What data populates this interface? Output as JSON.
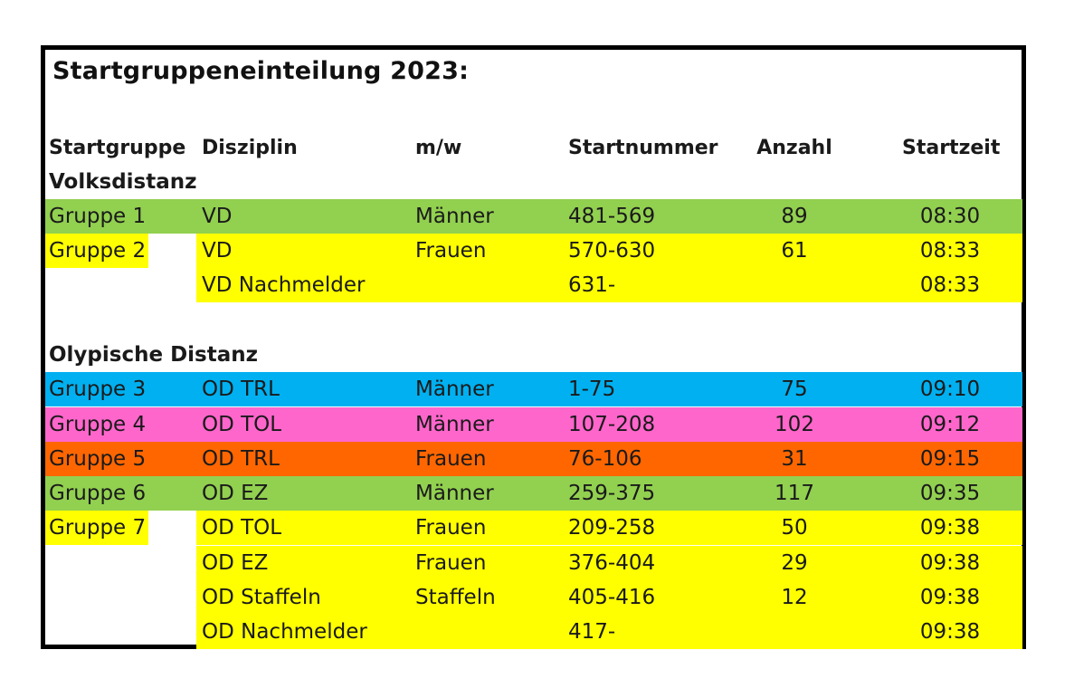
{
  "title": "Startgruppeneinteilung 2023:",
  "headers": {
    "col1": "Startgruppe",
    "col2": "Disziplin",
    "col3": "m/w",
    "col4": "Startnummer",
    "col5": "Anzahl",
    "col6": "Startzeit"
  },
  "sections": {
    "vd": "Volksdistanz",
    "od": "Olypische Distanz"
  },
  "colors": {
    "green": "#92d050",
    "yellow": "#ffff00",
    "blue": "#00b0f0",
    "pink": "#ff66cc",
    "orange": "#ff6600"
  },
  "rows": [
    {
      "group": "Gruppe 1",
      "discipline": "VD",
      "gender": "Männer",
      "numbers": "481-569",
      "count": "89",
      "time": "08:30",
      "color": "#92d050"
    },
    {
      "group": "Gruppe 2",
      "discipline": "VD",
      "gender": "Frauen",
      "numbers": "570-630",
      "count": "61",
      "time": "08:33",
      "color": "#ffff00"
    },
    {
      "group": "",
      "discipline": "VD Nachmelder",
      "gender": "",
      "numbers": "631-",
      "count": "",
      "time": "08:33",
      "color": "#ffff00"
    },
    {
      "group": "Gruppe 3",
      "discipline": "OD TRL",
      "gender": "Männer",
      "numbers": "1-75",
      "count": "75",
      "time": "09:10",
      "color": "#00b0f0"
    },
    {
      "group": "Gruppe 4",
      "discipline": "OD TOL",
      "gender": "Männer",
      "numbers": "107-208",
      "count": "102",
      "time": "09:12",
      "color": "#ff66cc"
    },
    {
      "group": "Gruppe 5",
      "discipline": "OD TRL",
      "gender": "Frauen",
      "numbers": "76-106",
      "count": "31",
      "time": "09:15",
      "color": "#ff6600"
    },
    {
      "group": "Gruppe 6",
      "discipline": "OD EZ",
      "gender": "Männer",
      "numbers": "259-375",
      "count": "117",
      "time": "09:35",
      "color": "#92d050"
    },
    {
      "group": "Gruppe 7",
      "discipline": "OD TOL",
      "gender": "Frauen",
      "numbers": "209-258",
      "count": "50",
      "time": "09:38",
      "color": "#ffff00"
    },
    {
      "group": "",
      "discipline": "OD EZ",
      "gender": "Frauen",
      "numbers": "376-404",
      "count": "29",
      "time": "09:38",
      "color": "#ffff00"
    },
    {
      "group": "",
      "discipline": "OD Staffeln",
      "gender": "Staffeln",
      "numbers": "405-416",
      "count": "12",
      "time": "09:38",
      "color": "#ffff00"
    },
    {
      "group": "",
      "discipline": "OD Nachmelder",
      "gender": "",
      "numbers": "417-",
      "count": "",
      "time": "09:38",
      "color": "#ffff00"
    }
  ]
}
